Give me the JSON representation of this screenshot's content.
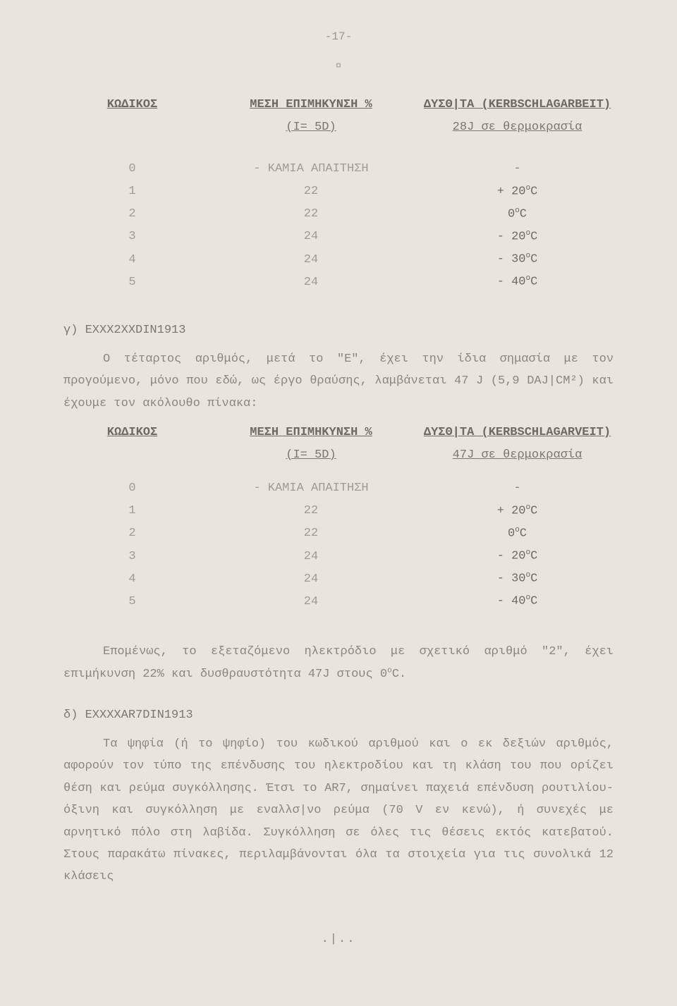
{
  "page_number": "-17-",
  "table1": {
    "headers": {
      "code": "ΚΩΔΙΚΟΣ",
      "mid": "ΜΕΣΗ ΕΠΙΜΗΚΥΝΣΗ  %",
      "right": "ΔΥΣΘ|ΤΑ (KERBSCHLAGARBEIT)"
    },
    "sub": {
      "mid": "(I= 5D)",
      "right": "28J σε θερμοκρασία"
    },
    "rows": [
      {
        "code": "0",
        "mid": "- ΚΑΜΙΑ ΑΠΑΙΤΗΣΗ",
        "right": "-"
      },
      {
        "code": "1",
        "mid": "22",
        "right": "+ 20°C"
      },
      {
        "code": "2",
        "mid": "22",
        "right": "0°C"
      },
      {
        "code": "3",
        "mid": "24",
        "right": "- 20°C"
      },
      {
        "code": "4",
        "mid": "24",
        "right": "- 30°C"
      },
      {
        "code": "5",
        "mid": "24",
        "right": "- 40°C"
      }
    ]
  },
  "section_gamma_title": "γ) EXXX2XXDIN1913",
  "section_gamma_para": "Ο τέταρτος αριθμός, μετά το \"Ε\", έχει την ίδια σημασία με τον προγούμενο, μόνο που εδώ, ως έργο θραύσης, λαμβάνεται 47 J (5,9 DAJ|CM²)  και έχουμε τον ακόλουθο πίνακα:",
  "table2": {
    "headers": {
      "code": "ΚΩΔΙΚΟΣ",
      "mid": "ΜΕΣΗ ΕΠΙΜΗΚΥΝΣΗ  %",
      "right": "ΔΥΣΘ|ΤΑ (KERBSCHLAGARVEIT)"
    },
    "sub": {
      "mid": "(I= 5D)",
      "right": "47J σε θερμοκρασία"
    },
    "rows": [
      {
        "code": "0",
        "mid": "- ΚΑΜΙΑ ΑΠΑΙΤΗΣΗ",
        "right": "-"
      },
      {
        "code": "1",
        "mid": "22",
        "right": "+ 20°C"
      },
      {
        "code": "2",
        "mid": "22",
        "right": "0°C"
      },
      {
        "code": "3",
        "mid": "24",
        "right": "- 20°C"
      },
      {
        "code": "4",
        "mid": "24",
        "right": "- 30°C"
      },
      {
        "code": "5",
        "mid": "24",
        "right": "- 40°C"
      }
    ]
  },
  "para_after_t2": "Επομένως, το εξεταζόμενο ηλεκτρόδιο με σχετικό αριθμό \"2\", έχει επιμήκυνση  22% και δυσθραυστότητα 47J στους 0°C.",
  "section_delta_title": "δ) EXXXXAR7DIN1913",
  "section_delta_para": "Τα ψηφία (ή το ψηφίο) του κωδικού αριθμού και ο εκ δεξιών αριθμός, αφορούν τον τύπο της επένδυσης του ηλεκτροδίου και τη κλάση του που ορίζει θέση και ρεύμα συγκόλλησης. Έτσι το AR7, σημαίνει παχειά επένδυση ρουτιλίου-όξινη και συγκόλληση με εναλλσ|νο ρεύμα (70 V εν κενώ), ή συνεχές με αρνητικό πόλο στη λαβίδα. Συγκόλληση σε όλες τις θέσεις εκτός κατεβατού. Στους παρακάτω πίνακες, περιλαμβάνονται όλα τα στοιχεία για τις συνολικά 12 κλάσεις",
  "footer": ".|.."
}
